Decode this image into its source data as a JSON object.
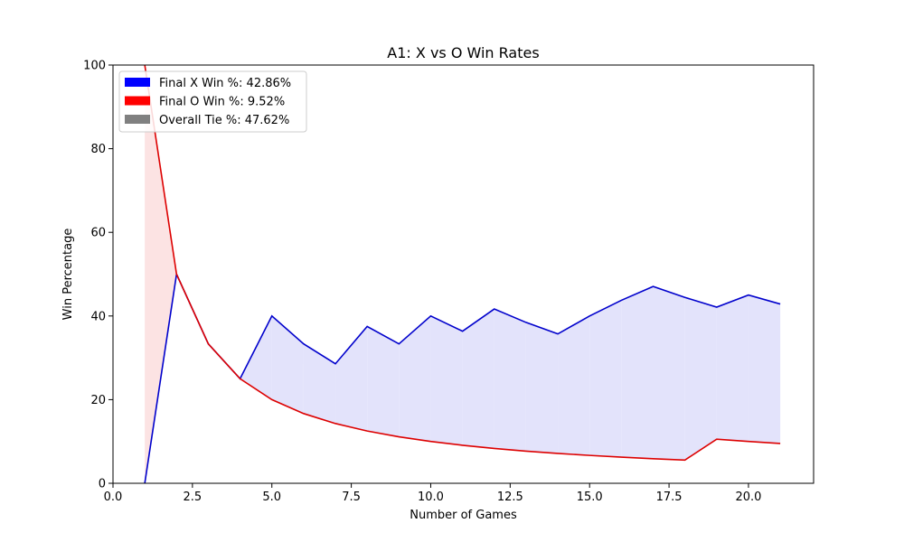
{
  "chart_data": {
    "type": "line",
    "title": "A1: X vs O Win Rates",
    "xlabel": "Number of Games",
    "ylabel": "Win Percentage",
    "xlim": [
      0,
      22.05
    ],
    "ylim": [
      0,
      100
    ],
    "x_ticks": [
      "0.0",
      "2.5",
      "5.0",
      "7.5",
      "10.0",
      "12.5",
      "15.0",
      "17.5",
      "20.0"
    ],
    "y_ticks": [
      "0",
      "20",
      "40",
      "60",
      "80",
      "100"
    ],
    "grid": false,
    "legend_position": "top-left",
    "x": [
      1,
      2,
      3,
      4,
      5,
      6,
      7,
      8,
      9,
      10,
      11,
      12,
      13,
      14,
      15,
      16,
      17,
      18,
      19,
      20,
      21
    ],
    "series": [
      {
        "key": "x_win",
        "color": "#0000cc",
        "values": [
          0,
          50,
          33.33,
          25,
          40,
          33.33,
          28.57,
          37.5,
          33.33,
          40,
          36.36,
          41.67,
          38.46,
          35.71,
          40,
          43.75,
          47.06,
          44.44,
          42.11,
          45,
          42.86
        ]
      },
      {
        "key": "o_win",
        "color": "#dd0000",
        "values": [
          100,
          50,
          33.33,
          25,
          20,
          16.67,
          14.29,
          12.5,
          11.11,
          10,
          9.09,
          8.33,
          7.69,
          7.14,
          6.67,
          6.25,
          5.88,
          5.56,
          10.53,
          10,
          9.52
        ]
      }
    ],
    "fill_between": {
      "upper_color": "#e3e3fb",
      "lower_color": "#fce3e3"
    },
    "legend": [
      {
        "label": "Final X Win %: 42.86%",
        "color": "#0000ff"
      },
      {
        "label": "Final O Win %: 9.52%",
        "color": "#ff0000"
      },
      {
        "label": "Overall Tie %: 47.62%",
        "color": "#808080"
      }
    ]
  }
}
